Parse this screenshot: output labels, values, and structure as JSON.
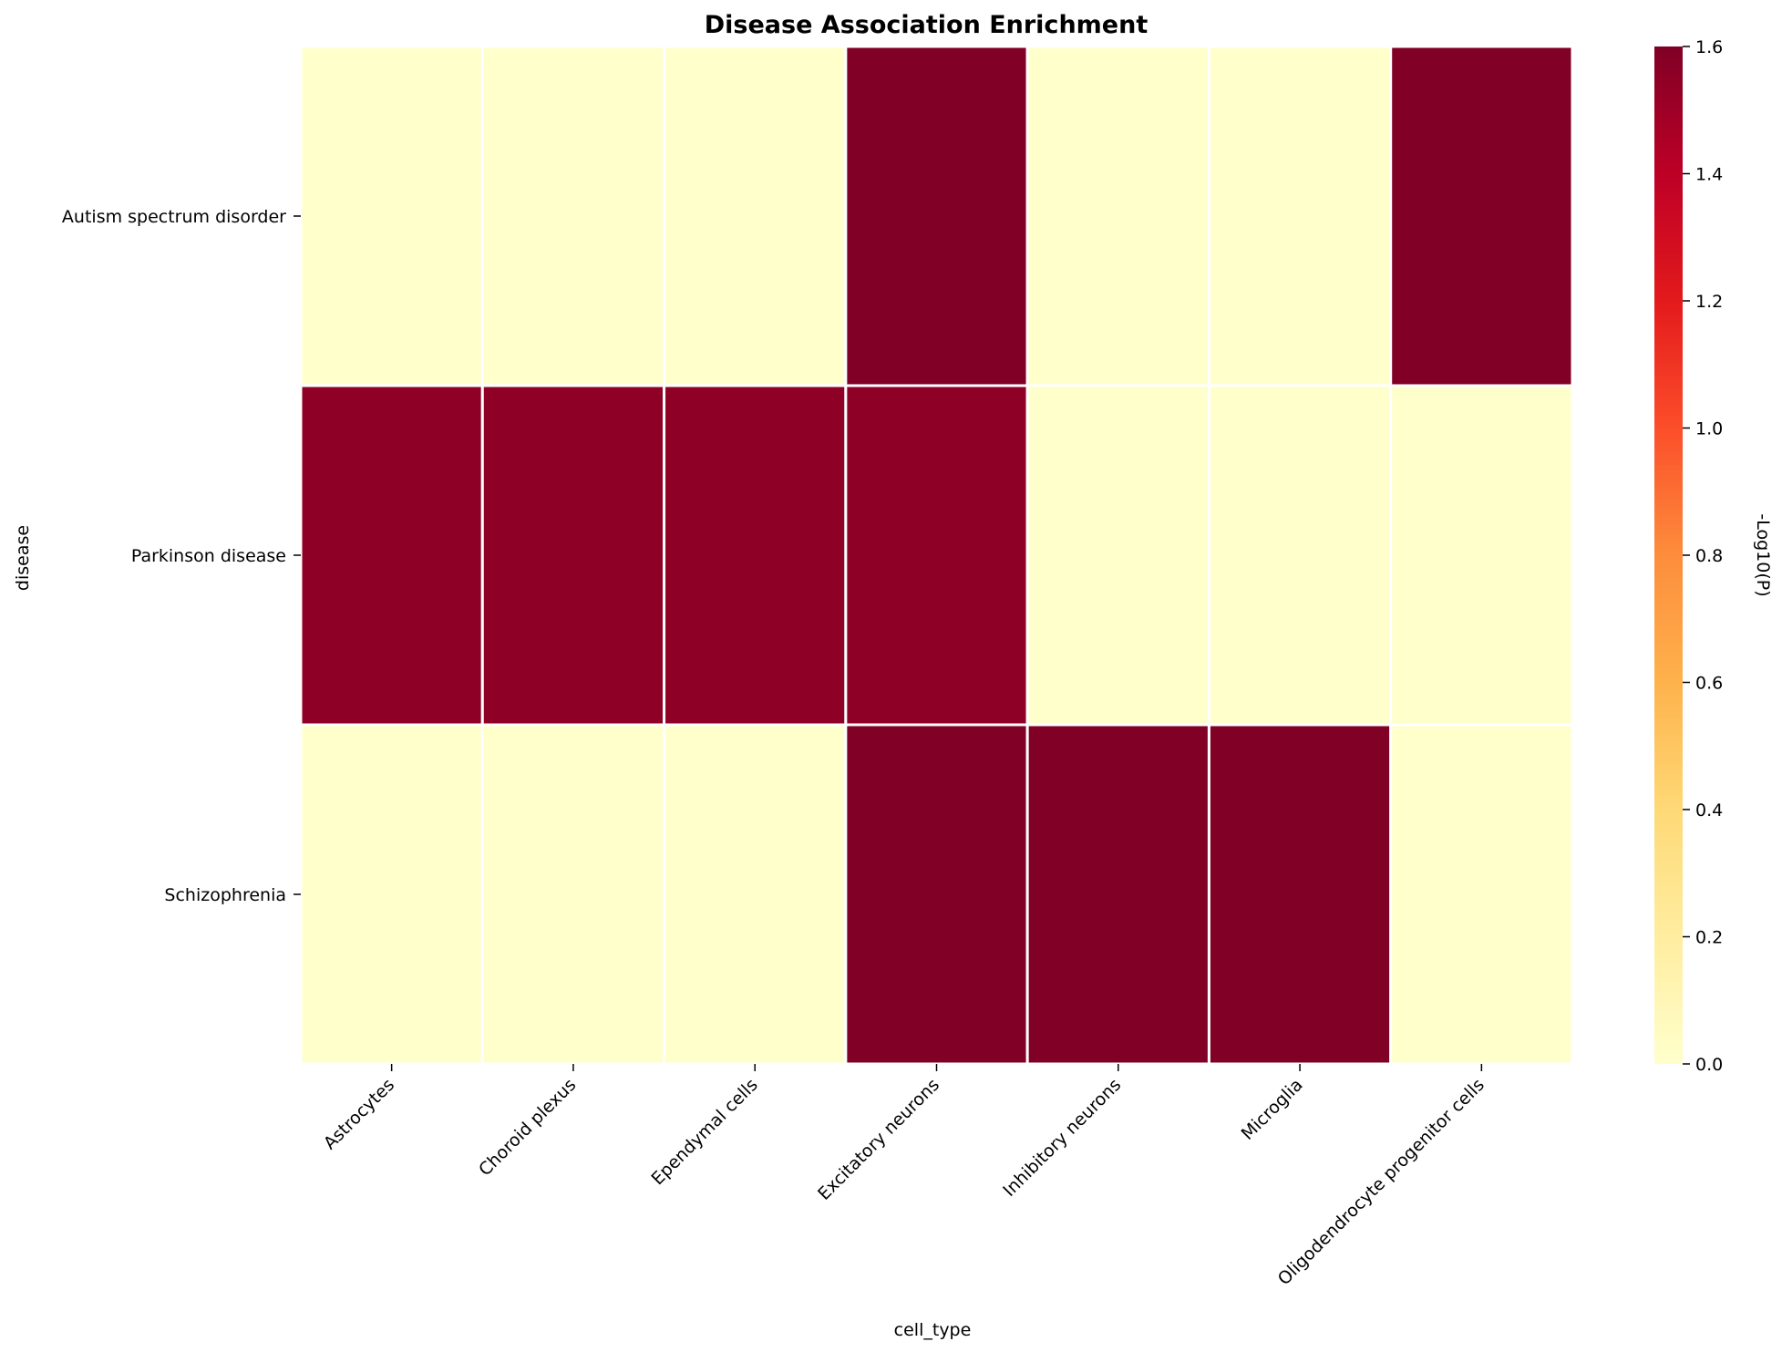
{
  "chart_data": {
    "type": "heatmap",
    "title": "Disease Association Enrichment",
    "xlabel": "cell_type",
    "ylabel": "disease",
    "x": [
      "Astrocytes",
      "Choroid plexus",
      "Ependymal cells",
      "Excitatory neurons",
      "Inhibitory neurons",
      "Microglia",
      "Oligodendrocyte progenitor cells"
    ],
    "y": [
      "Autism spectrum disorder",
      "Parkinson disease",
      "Schizophrenia"
    ],
    "values": [
      [
        0.0,
        0.0,
        0.0,
        1.6,
        0.0,
        0.0,
        1.6
      ],
      [
        1.55,
        1.55,
        1.55,
        1.55,
        0.0,
        0.0,
        0.0
      ],
      [
        0.0,
        0.0,
        0.0,
        1.6,
        1.6,
        1.6,
        0.0
      ]
    ],
    "colorbar": {
      "label": "-Log10(P)",
      "range": [
        0.0,
        1.6
      ],
      "ticks": [
        "0.0",
        "0.2",
        "0.4",
        "0.6",
        "0.8",
        "1.0",
        "1.2",
        "1.4",
        "1.6"
      ],
      "colormap": "YlOrRd"
    },
    "cell_border_color": "#ffffff",
    "grid": false,
    "legend": "colorbar-right"
  }
}
